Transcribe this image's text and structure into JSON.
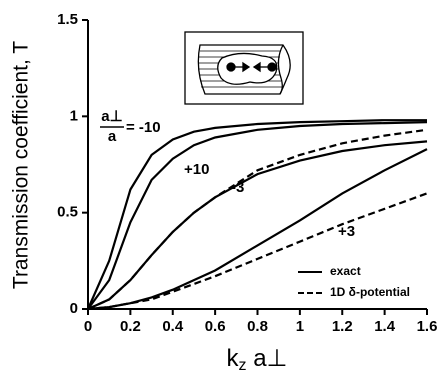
{
  "chart_data": {
    "type": "line",
    "ylabel": "Transmission coefficient, T",
    "xlabel": [
      "k",
      "z",
      " a⊥"
    ],
    "x": [
      0,
      0.1,
      0.2,
      0.3,
      0.4,
      0.5,
      0.6,
      0.8,
      1.0,
      1.2,
      1.4,
      1.6
    ],
    "series": [
      {
        "style": "solid",
        "color": "#000000",
        "values": [
          0,
          0.25,
          0.62,
          0.8,
          0.88,
          0.92,
          0.94,
          0.96,
          0.97,
          0.975,
          0.98,
          0.98
        ]
      },
      {
        "style": "solid",
        "color": "#000000",
        "values": [
          0,
          0.15,
          0.45,
          0.67,
          0.78,
          0.85,
          0.89,
          0.93,
          0.95,
          0.96,
          0.965,
          0.97
        ]
      },
      {
        "style": "solid",
        "color": "#000000",
        "values": [
          0,
          0.05,
          0.15,
          0.28,
          0.4,
          0.5,
          0.58,
          0.7,
          0.77,
          0.82,
          0.85,
          0.87
        ]
      },
      {
        "style": "dashed",
        "color": "#000000",
        "values": [
          0,
          0.05,
          0.15,
          0.28,
          0.4,
          0.5,
          0.58,
          0.72,
          0.8,
          0.86,
          0.9,
          0.93
        ]
      },
      {
        "style": "solid",
        "color": "#000000",
        "values": [
          0,
          0.01,
          0.03,
          0.06,
          0.1,
          0.15,
          0.2,
          0.33,
          0.46,
          0.6,
          0.72,
          0.83
        ]
      },
      {
        "style": "dashed",
        "color": "#000000",
        "values": [
          0,
          0.01,
          0.03,
          0.05,
          0.09,
          0.13,
          0.17,
          0.26,
          0.35,
          0.44,
          0.52,
          0.6
        ]
      }
    ],
    "legend": [
      {
        "label": "exact",
        "style": "solid"
      },
      {
        "label": "1D δ-potential",
        "style": "dashed"
      }
    ],
    "annotations": [
      "a⊥",
      "a",
      "= -10",
      "+10",
      "-3",
      "+3"
    ],
    "xlim": [
      0,
      1.6
    ],
    "xticks": [
      0,
      0.2,
      0.4,
      0.6,
      0.8,
      1,
      1.2,
      1.4,
      1.6
    ],
    "ylim": [
      0,
      1.5
    ],
    "yticks": [
      0,
      0.5,
      1,
      1.5
    ],
    "grid": false
  }
}
